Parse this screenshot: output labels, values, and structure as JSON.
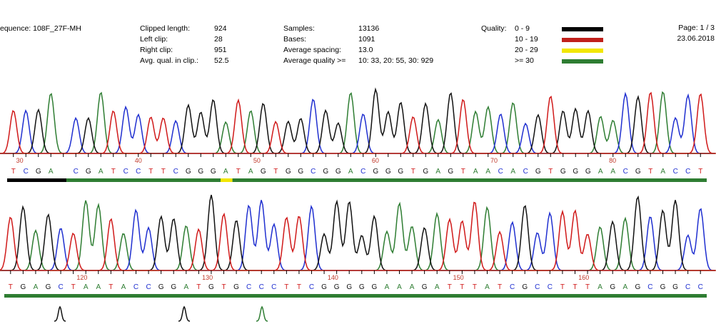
{
  "header": {
    "sequence": "equence: 108F_27F-MH",
    "labels_col1": [
      "Clipped length:",
      "Left clip:",
      "Right clip:",
      "Avg. qual. in clip.:"
    ],
    "values_col1": [
      "924",
      "28",
      "951",
      "52.5"
    ],
    "labels_col2": [
      "Samples:",
      "Bases:",
      "Average spacing:",
      "Average quality >="
    ],
    "values_col2": [
      "13136",
      "1091",
      "13.0",
      "10: 33, 20: 55, 30: 929"
    ],
    "quality_label": "Quality:",
    "quality_ranges": [
      "0 - 9",
      "10 - 19",
      "20 - 29",
      ">= 30"
    ],
    "quality_colors": [
      "#000000",
      "#c0201b",
      "#f2e600",
      "#2e7d32"
    ],
    "page": "Page: 1 / 3",
    "date": "23.06.2018"
  },
  "colors": {
    "A": "#2e7d32",
    "C": "#1f2fd0",
    "G": "#111111",
    "T": "#d01919",
    "axis": "#c0392b"
  },
  "chart_data": [
    {
      "type": "line",
      "title": "",
      "xlabel": "",
      "ylabel": "",
      "panel": 1,
      "position_range": [
        29,
        88
      ],
      "tick_labels": [
        "30",
        "40",
        "50",
        "60",
        "70",
        "80"
      ],
      "bases": "TCGA CGATCCTTCGGGATAGTGGCGGACGGGTGAGTAACACGTGGGAACGTACCT",
      "quality_segments": [
        {
          "from": 29,
          "to": 34,
          "quality": "0 - 9"
        },
        {
          "from": 34,
          "to": 47,
          "quality": ">= 30"
        },
        {
          "from": 47,
          "to": 48,
          "quality": "20 - 29"
        },
        {
          "from": 48,
          "to": 88,
          "quality": ">= 30"
        }
      ]
    },
    {
      "type": "line",
      "title": "",
      "xlabel": "",
      "ylabel": "",
      "panel": 2,
      "position_range": [
        114,
        170
      ],
      "tick_labels": [
        "120",
        "130",
        "140",
        "150",
        "160"
      ],
      "bases": "TGAGCTAATACCGGATGTGCCCTTCGGGGGAAAGATTTATCGCCTTTAGAGCGGCC",
      "quality_segments": [
        {
          "from": 114,
          "to": 170,
          "quality": ">= 30"
        }
      ]
    }
  ]
}
